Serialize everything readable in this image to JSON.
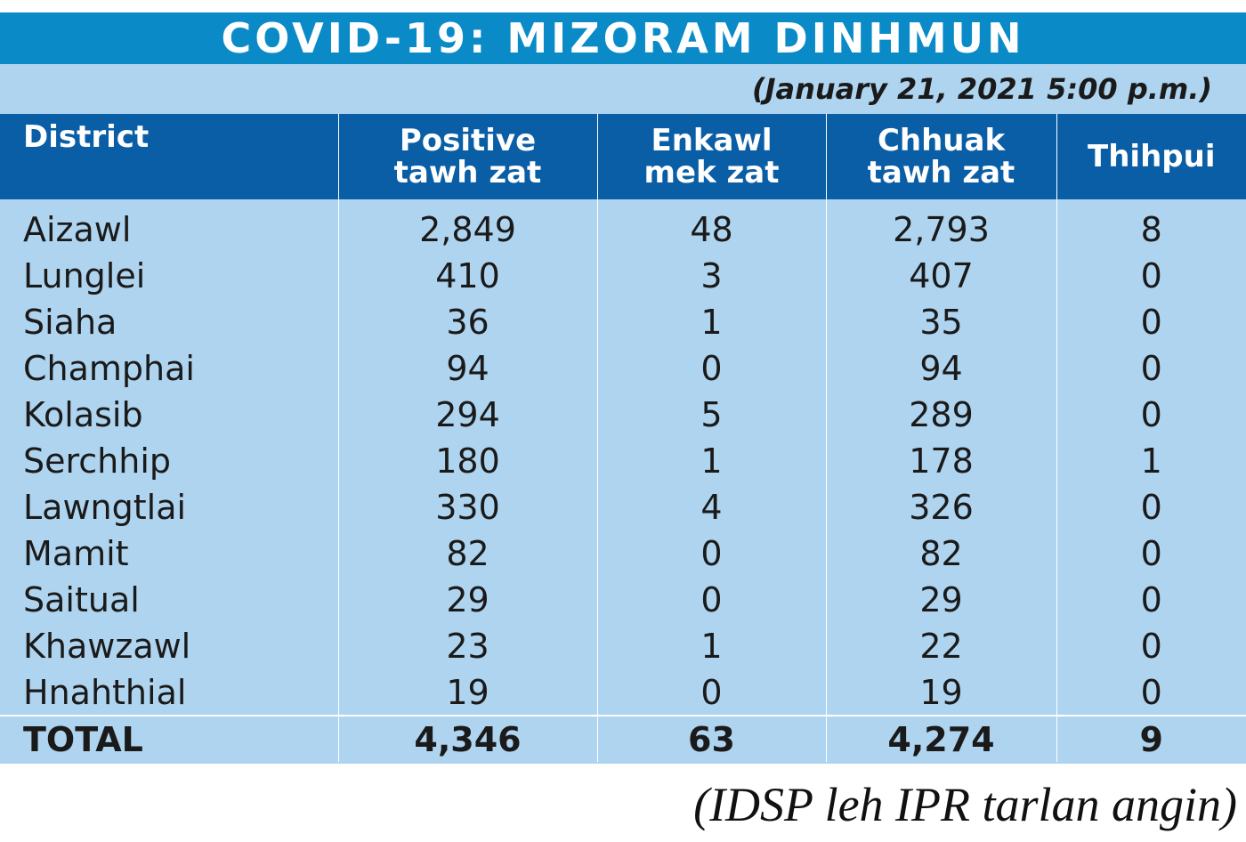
{
  "title": "COVID-19: MIZORAM DINHMUN",
  "date": "(January 21, 2021 5:00 p.m.)",
  "source": "(IDSP leh IPR tarlan angin)",
  "colors": {
    "title_bg": "#0a8bc7",
    "header_bg": "#0a5ea6",
    "body_bg": "#afd4ef"
  },
  "chart_data": {
    "type": "table",
    "columns": [
      {
        "lines": [
          "District"
        ]
      },
      {
        "lines": [
          "Positive",
          "tawh zat"
        ]
      },
      {
        "lines": [
          "Enkawl",
          "mek zat"
        ]
      },
      {
        "lines": [
          "Chhuak",
          "tawh zat"
        ]
      },
      {
        "lines": [
          "Thihpui"
        ]
      }
    ],
    "rows": [
      {
        "district": "Aizawl",
        "positive": "2,849",
        "active": "48",
        "recovered": "2,793",
        "deaths": "8"
      },
      {
        "district": "Lunglei",
        "positive": "410",
        "active": "3",
        "recovered": "407",
        "deaths": "0"
      },
      {
        "district": "Siaha",
        "positive": "36",
        "active": "1",
        "recovered": "35",
        "deaths": "0"
      },
      {
        "district": "Champhai",
        "positive": "94",
        "active": "0",
        "recovered": "94",
        "deaths": "0"
      },
      {
        "district": "Kolasib",
        "positive": "294",
        "active": "5",
        "recovered": "289",
        "deaths": "0"
      },
      {
        "district": "Serchhip",
        "positive": "180",
        "active": "1",
        "recovered": "178",
        "deaths": "1"
      },
      {
        "district": "Lawngtlai",
        "positive": "330",
        "active": "4",
        "recovered": "326",
        "deaths": "0"
      },
      {
        "district": "Mamit",
        "positive": "82",
        "active": "0",
        "recovered": "82",
        "deaths": "0"
      },
      {
        "district": "Saitual",
        "positive": "29",
        "active": "0",
        "recovered": "29",
        "deaths": "0"
      },
      {
        "district": "Khawzawl",
        "positive": "23",
        "active": "1",
        "recovered": "22",
        "deaths": "0"
      },
      {
        "district": "Hnahthial",
        "positive": "19",
        "active": "0",
        "recovered": "19",
        "deaths": "0"
      }
    ],
    "total": {
      "district": "TOTAL",
      "positive": "4,346",
      "active": "63",
      "recovered": "4,274",
      "deaths": "9"
    }
  }
}
